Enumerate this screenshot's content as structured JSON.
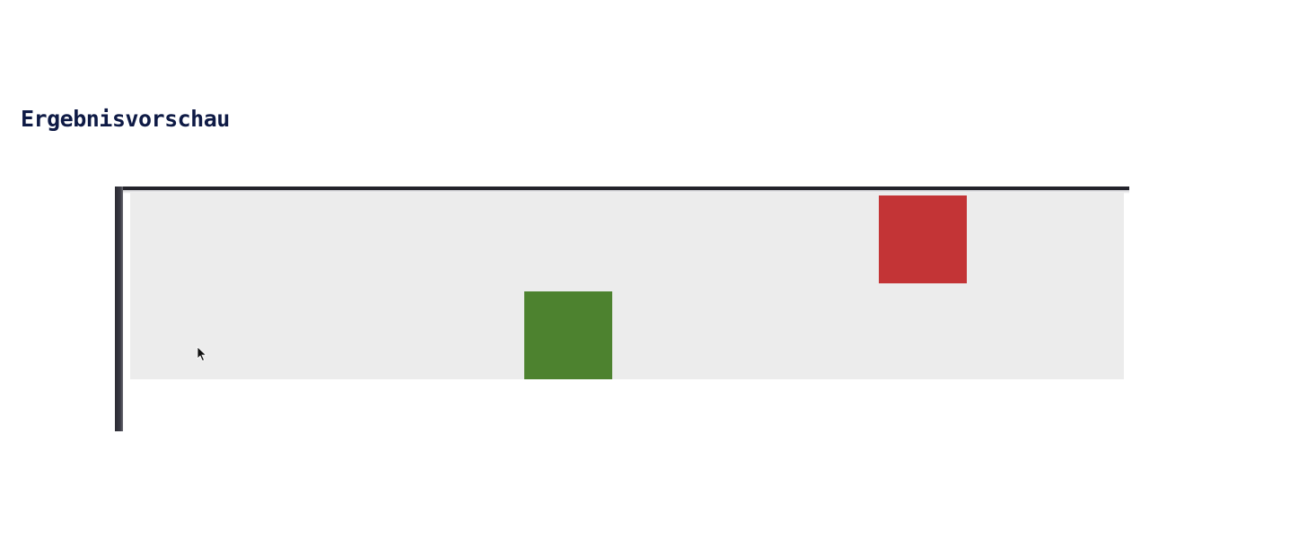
{
  "heading": {
    "title": "Ergebnisvorschau"
  },
  "preview": {
    "tiles": [
      {
        "name": "green-tile",
        "color": "#4d822f"
      },
      {
        "name": "red-tile",
        "color": "#c33436"
      }
    ],
    "cursor_icon": "mouse-pointer-icon"
  },
  "colors": {
    "heading_text": "#0e1a45",
    "canvas_background": "#ececec",
    "frame_border": "#23232b"
  }
}
